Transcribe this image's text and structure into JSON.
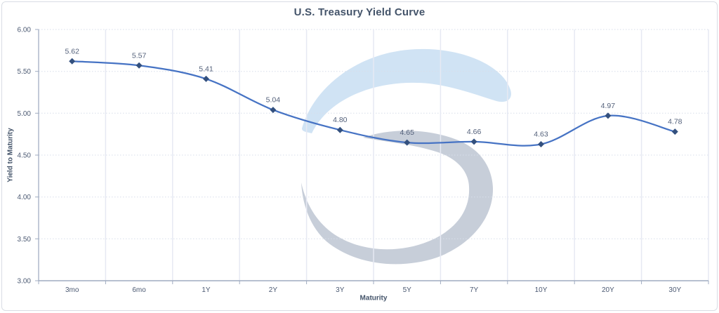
{
  "chart_data": {
    "type": "line",
    "title": "U.S. Treasury Yield Curve",
    "xlabel": "Maturity",
    "ylabel": "Yield to Maturity",
    "categories": [
      "3mo",
      "6mo",
      "1Y",
      "2Y",
      "3Y",
      "5Y",
      "7Y",
      "10Y",
      "20Y",
      "30Y"
    ],
    "series": [
      {
        "name": "Yield to Maturity",
        "values": [
          5.62,
          5.57,
          5.41,
          5.04,
          4.8,
          4.65,
          4.66,
          4.63,
          4.97,
          4.78
        ],
        "labels": [
          "5.62",
          "5.57",
          "5.41",
          "5.04",
          "4.80",
          "4.65",
          "4.66",
          "4.63",
          "4.97",
          "4.78"
        ]
      }
    ],
    "ylim": [
      3.0,
      6.0
    ],
    "y_tick_values": [
      6.0,
      5.5,
      5.0,
      4.5,
      4.0,
      3.5,
      3.0
    ],
    "y_tick_labels": [
      "6.00",
      "5.50",
      "5.00",
      "4.50",
      "4.00",
      "3.50",
      "3.00"
    ],
    "grid": true,
    "legend": "none",
    "smooth": true,
    "marker": "diamond"
  },
  "colors": {
    "title": "#44546a",
    "tick_label": "#4c5a73",
    "data_label": "#53607a",
    "line": "#4673c4",
    "marker": "#33507e",
    "grid_h": "#d7deea",
    "grid_v": "#e6e9f3",
    "axis": "#9fabc0",
    "watermark_blue": "#d0e3f4",
    "watermark_gray": "#c7ced9",
    "card_border": "#d9dde4",
    "background": "#ffffff"
  },
  "watermark": {
    "name": "swirl-logo-watermark"
  }
}
